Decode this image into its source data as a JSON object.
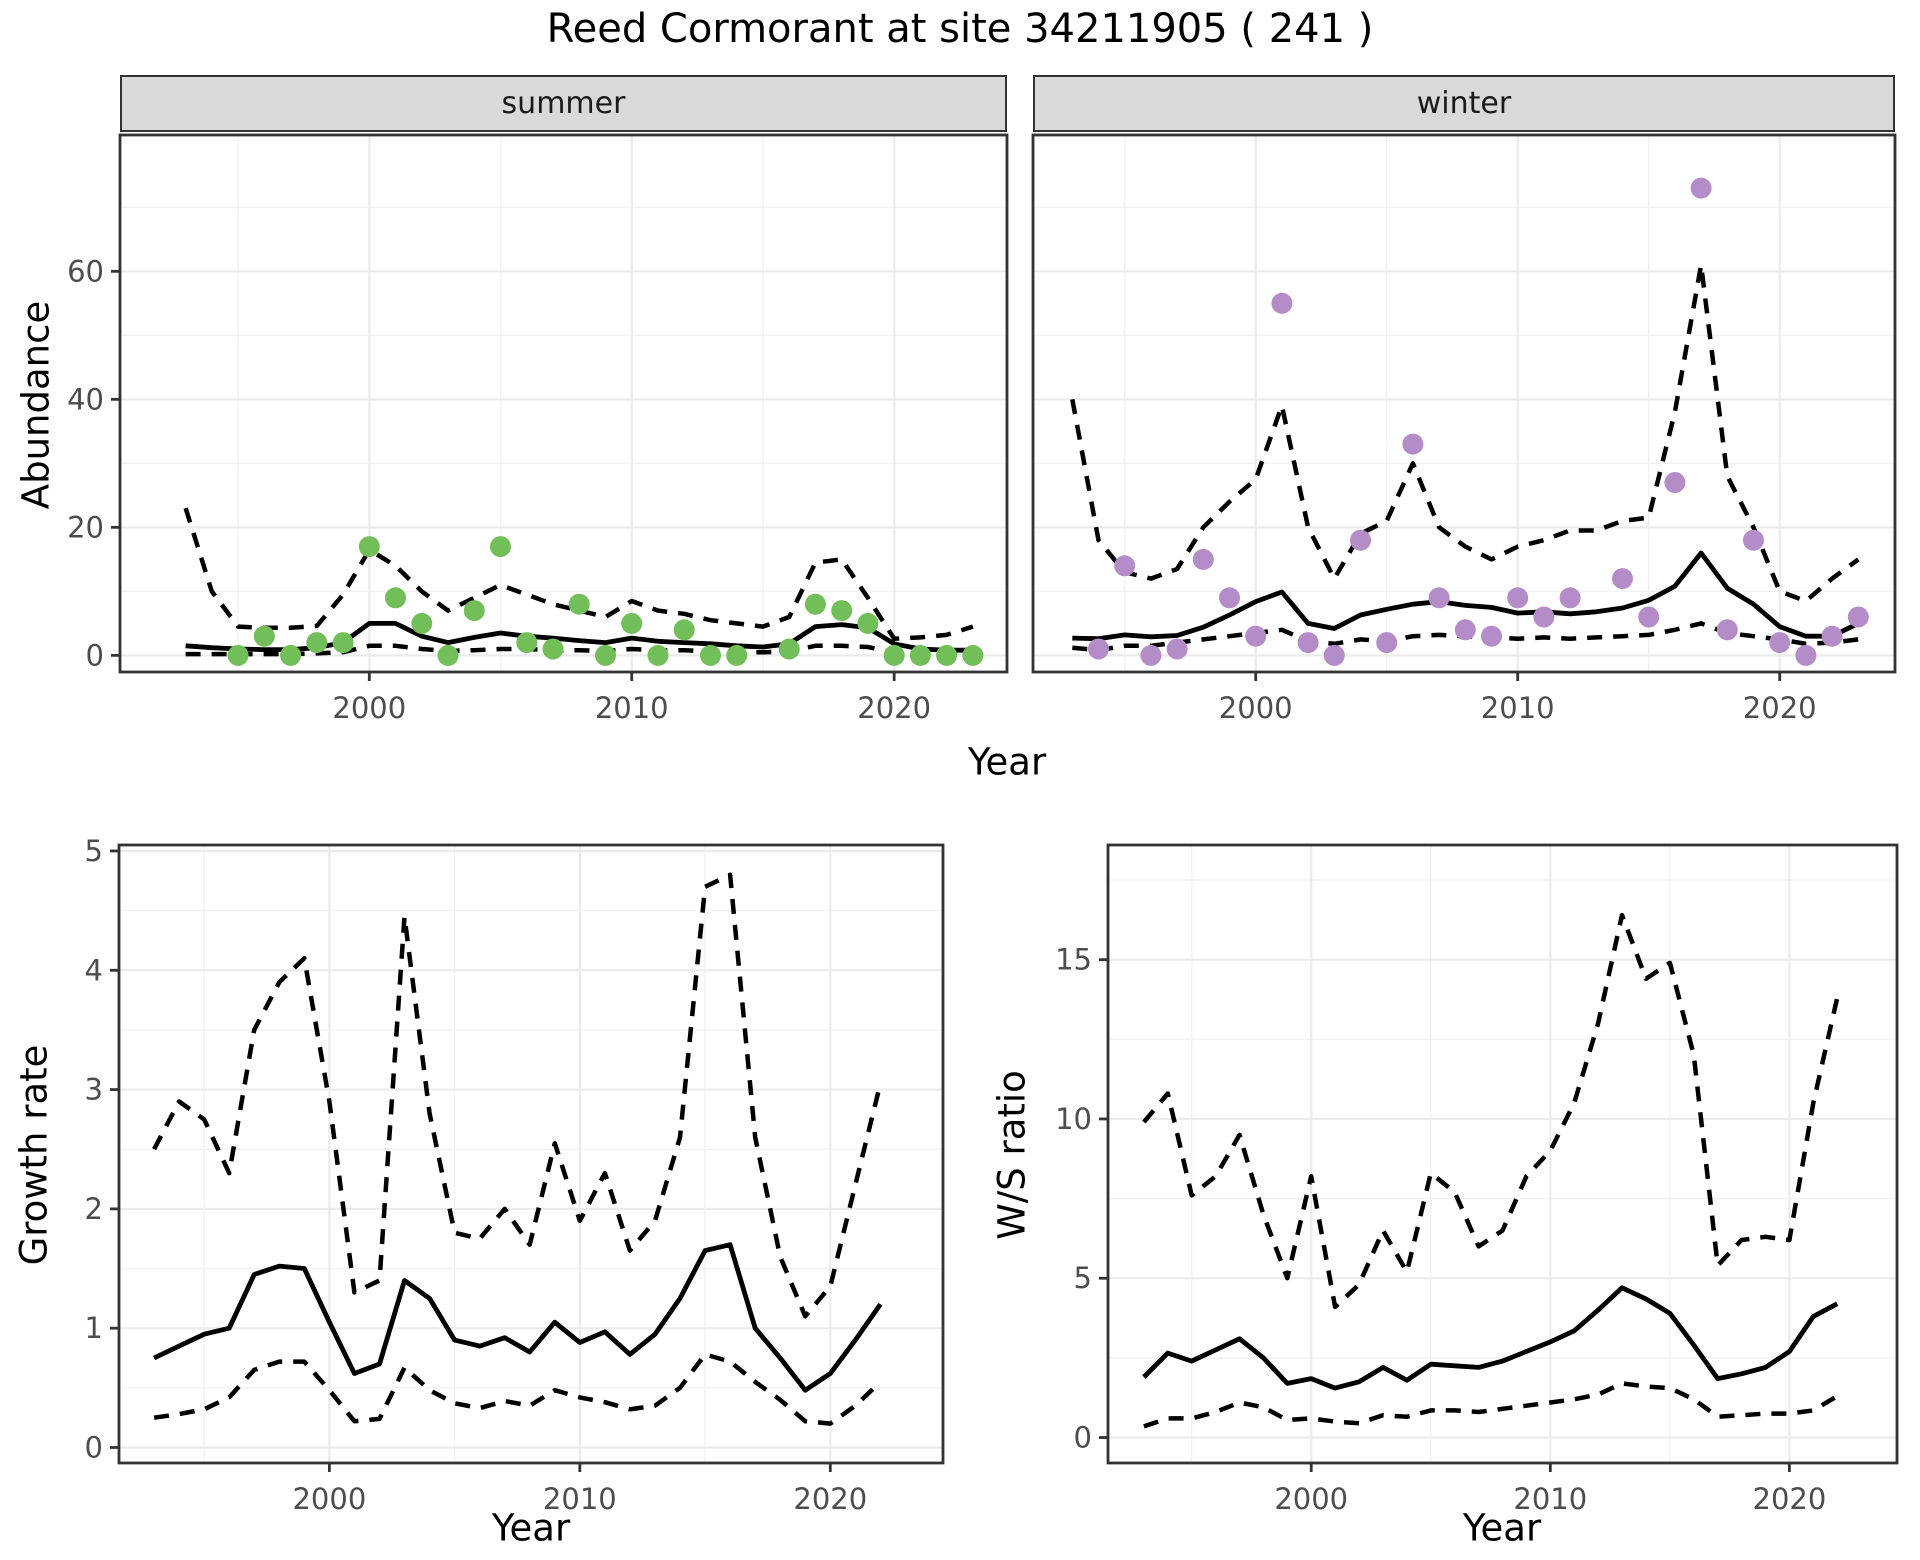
{
  "title": "Reed Cormorant at site 34211905 ( 241 )",
  "colors": {
    "summer_point": "#72bf5a",
    "winter_point": "#b48cc8",
    "line": "#000000",
    "grid_major": "#ebebeb",
    "grid_minor": "#f3f3f3",
    "panel_border": "#333333",
    "strip_bg": "#d9d9d9",
    "tick_text": "#4d4d4d"
  },
  "top_xlabel": "Year",
  "chart_data": [
    {
      "type": "scatter+line",
      "facet": "summer",
      "ylabel": "Abundance",
      "xlabel": "Year",
      "xlim": [
        1990.5,
        2024.3
      ],
      "ylim": [
        -2.6,
        81.3
      ],
      "xticks": [
        2000,
        2010,
        2020
      ],
      "xtick_labels": [
        "2000",
        "2010",
        "2020"
      ],
      "yticks": [
        0,
        20,
        40,
        60
      ],
      "ytick_labels": [
        "0",
        "20",
        "40",
        "60"
      ],
      "x_minor": [
        1995,
        2005,
        2015
      ],
      "y_minor": [
        10,
        30,
        50,
        70
      ],
      "point_color": "#72bf5a",
      "points": {
        "years": [
          1995,
          1996,
          1997,
          1998,
          1999,
          2000,
          2001,
          2002,
          2003,
          2004,
          2005,
          2006,
          2007,
          2008,
          2009,
          2010,
          2011,
          2012,
          2013,
          2014,
          2016,
          2017,
          2018,
          2019,
          2020,
          2021,
          2022,
          2023
        ],
        "values": [
          0,
          3,
          0,
          2,
          2,
          17,
          9,
          5,
          0,
          7,
          17,
          2,
          1,
          8,
          0,
          5,
          0,
          4,
          0,
          0,
          1,
          8,
          7,
          5,
          0,
          0,
          0,
          0
        ]
      },
      "years": [
        1993,
        1994,
        1995,
        1996,
        1997,
        1998,
        1999,
        2000,
        2001,
        2002,
        2003,
        2004,
        2005,
        2006,
        2007,
        2008,
        2009,
        2010,
        2011,
        2012,
        2013,
        2014,
        2015,
        2016,
        2017,
        2018,
        2019,
        2020,
        2021,
        2022,
        2023
      ],
      "mean": [
        1.5,
        1.2,
        1.0,
        0.9,
        0.9,
        1.2,
        2.0,
        5.0,
        5.0,
        3.0,
        2.0,
        2.8,
        3.5,
        3.0,
        2.7,
        2.3,
        2.0,
        2.7,
        2.2,
        2.0,
        1.8,
        1.5,
        1.3,
        1.8,
        4.5,
        4.8,
        4.3,
        1.8,
        1.0,
        0.8,
        0.8
      ],
      "upper": [
        23,
        10,
        4.5,
        4.3,
        4.3,
        4.6,
        9.5,
        16.5,
        14,
        10,
        7,
        9,
        11,
        9.5,
        8,
        7,
        6,
        8.5,
        7,
        6.5,
        5.5,
        5,
        4.5,
        6,
        14.5,
        15,
        9,
        2.6,
        2.8,
        3.2,
        4.5
      ],
      "lower": [
        0.2,
        0.2,
        0.2,
        0.2,
        0.2,
        0.3,
        0.5,
        1.5,
        1.5,
        1.0,
        0.7,
        0.8,
        1.0,
        1.0,
        0.8,
        0.8,
        0.7,
        1.0,
        0.8,
        0.8,
        0.6,
        0.5,
        0.5,
        0.6,
        1.5,
        1.5,
        1.3,
        0.4,
        0.3,
        0.2,
        0.2
      ]
    },
    {
      "type": "scatter+line",
      "facet": "winter",
      "ylabel": "Abundance",
      "xlabel": "Year",
      "xlim": [
        1991.5,
        2024.4
      ],
      "ylim": [
        -2.6,
        81.3
      ],
      "xticks": [
        2000,
        2010,
        2020
      ],
      "xtick_labels": [
        "2000",
        "2010",
        "2020"
      ],
      "yticks": [
        0,
        20,
        40,
        60
      ],
      "ytick_labels": [
        "0",
        "20",
        "40",
        "60"
      ],
      "x_minor": [
        1995,
        2005,
        2015
      ],
      "y_minor": [
        10,
        30,
        50,
        70
      ],
      "point_color": "#b48cc8",
      "points": {
        "years": [
          1994,
          1995,
          1996,
          1997,
          1998,
          1999,
          2000,
          2001,
          2002,
          2003,
          2004,
          2005,
          2006,
          2007,
          2008,
          2009,
          2010,
          2011,
          2012,
          2014,
          2015,
          2016,
          2017,
          2018,
          2019,
          2020,
          2021,
          2022,
          2023
        ],
        "values": [
          1,
          14,
          0,
          1,
          15,
          9,
          3,
          55,
          2,
          0,
          18,
          2,
          33,
          9,
          4,
          3,
          9,
          6,
          9,
          12,
          6,
          27,
          73,
          4,
          18,
          2,
          0,
          3,
          6
        ]
      },
      "years": [
        1993,
        1994,
        1995,
        1996,
        1997,
        1998,
        1999,
        2000,
        2001,
        2002,
        2003,
        2004,
        2005,
        2006,
        2007,
        2008,
        2009,
        2010,
        2011,
        2012,
        2013,
        2014,
        2015,
        2016,
        2017,
        2018,
        2019,
        2020,
        2021,
        2022,
        2023
      ],
      "mean": [
        2.7,
        2.6,
        3.2,
        2.9,
        3.1,
        4.4,
        6.3,
        8.4,
        9.9,
        5.0,
        4.2,
        6.3,
        7.2,
        8.0,
        8.4,
        7.8,
        7.5,
        6.6,
        6.8,
        6.5,
        6.8,
        7.4,
        8.6,
        10.8,
        16.0,
        10.5,
        8.0,
        4.5,
        3.0,
        3.0,
        5.0
      ],
      "upper": [
        40,
        18,
        13,
        12,
        13.5,
        20,
        24,
        27.5,
        39,
        20,
        12,
        19,
        21,
        30,
        20,
        17,
        15,
        17,
        18,
        19.5,
        19.5,
        21,
        21.5,
        38,
        61,
        28,
        20,
        10,
        8.5,
        12,
        15
      ],
      "lower": [
        1.2,
        0.8,
        1.5,
        1.5,
        2.0,
        2.5,
        3.0,
        3.5,
        4.0,
        2.2,
        1.8,
        2.5,
        2.2,
        3.0,
        3.2,
        3.0,
        2.8,
        2.6,
        2.8,
        2.6,
        2.8,
        3.0,
        3.2,
        4.0,
        5.0,
        3.5,
        3.0,
        2.5,
        1.8,
        2.0,
        2.5
      ]
    },
    {
      "type": "line",
      "facet": "",
      "ylabel": "Growth rate",
      "xlabel": "Year",
      "xlim": [
        1991.6,
        2024.5
      ],
      "ylim": [
        -0.13,
        5.05
      ],
      "xticks": [
        2000,
        2010,
        2020
      ],
      "xtick_labels": [
        "2000",
        "2010",
        "2020"
      ],
      "yticks": [
        0,
        1,
        2,
        3,
        4,
        5
      ],
      "ytick_labels": [
        "0",
        "1",
        "2",
        "3",
        "4",
        "5"
      ],
      "x_minor": [
        1995,
        2005,
        2015
      ],
      "y_minor": [
        0.5,
        1.5,
        2.5,
        3.5,
        4.5
      ],
      "years": [
        1993,
        1994,
        1995,
        1996,
        1997,
        1998,
        1999,
        2000,
        2001,
        2002,
        2003,
        2004,
        2005,
        2006,
        2007,
        2008,
        2009,
        2010,
        2011,
        2012,
        2013,
        2014,
        2015,
        2016,
        2017,
        2018,
        2019,
        2020,
        2021,
        2022
      ],
      "mean": [
        0.75,
        0.85,
        0.95,
        1.0,
        1.45,
        1.52,
        1.5,
        1.05,
        0.62,
        0.7,
        1.4,
        1.25,
        0.9,
        0.85,
        0.92,
        0.8,
        1.05,
        0.88,
        0.97,
        0.78,
        0.95,
        1.25,
        1.65,
        1.7,
        1.0,
        0.75,
        0.48,
        0.62,
        0.9,
        1.2
      ],
      "upper": [
        2.5,
        2.9,
        2.75,
        2.3,
        3.5,
        3.9,
        4.1,
        2.9,
        1.3,
        1.4,
        4.45,
        2.8,
        1.8,
        1.75,
        2.0,
        1.7,
        2.55,
        1.9,
        2.3,
        1.65,
        1.9,
        2.6,
        4.7,
        4.8,
        2.6,
        1.6,
        1.1,
        1.35,
        2.2,
        3.05
      ],
      "lower": [
        0.25,
        0.28,
        0.32,
        0.42,
        0.65,
        0.72,
        0.72,
        0.48,
        0.22,
        0.24,
        0.67,
        0.48,
        0.37,
        0.33,
        0.39,
        0.35,
        0.48,
        0.42,
        0.38,
        0.32,
        0.35,
        0.5,
        0.78,
        0.72,
        0.55,
        0.4,
        0.22,
        0.2,
        0.35,
        0.55
      ]
    },
    {
      "type": "line",
      "facet": "",
      "ylabel": "W/S ratio",
      "xlabel": "Year",
      "xlim": [
        1991.5,
        2024.5
      ],
      "ylim": [
        -0.8,
        18.6
      ],
      "xticks": [
        2000,
        2010,
        2020
      ],
      "xtick_labels": [
        "2000",
        "2010",
        "2020"
      ],
      "yticks": [
        0,
        5,
        10,
        15
      ],
      "ytick_labels": [
        "0",
        "5",
        "10",
        "15"
      ],
      "x_minor": [
        1995,
        2005,
        2015
      ],
      "y_minor": [
        2.5,
        7.5,
        12.5,
        17.5
      ],
      "years": [
        1993,
        1994,
        1995,
        1996,
        1997,
        1998,
        1999,
        2000,
        2001,
        2002,
        2003,
        2004,
        2005,
        2006,
        2007,
        2008,
        2009,
        2010,
        2011,
        2012,
        2013,
        2014,
        2015,
        2016,
        2017,
        2018,
        2019,
        2020,
        2021,
        2022
      ],
      "mean": [
        1.9,
        2.65,
        2.4,
        2.75,
        3.1,
        2.5,
        1.7,
        1.85,
        1.55,
        1.75,
        2.2,
        1.8,
        2.3,
        2.25,
        2.2,
        2.4,
        2.7,
        3.0,
        3.35,
        4.0,
        4.7,
        4.35,
        3.9,
        2.9,
        1.85,
        2.0,
        2.2,
        2.7,
        3.8,
        4.2
      ],
      "upper": [
        9.9,
        10.8,
        7.6,
        8.2,
        9.5,
        7.0,
        5.0,
        8.2,
        4.1,
        4.8,
        6.5,
        5.2,
        8.3,
        7.7,
        6.0,
        6.5,
        8.2,
        9.0,
        10.5,
        13.0,
        16.4,
        14.4,
        14.9,
        12.0,
        5.4,
        6.2,
        6.3,
        6.2,
        10.5,
        13.8
      ],
      "lower": [
        0.35,
        0.6,
        0.6,
        0.8,
        1.1,
        0.95,
        0.55,
        0.6,
        0.5,
        0.45,
        0.7,
        0.65,
        0.85,
        0.85,
        0.8,
        0.9,
        1.0,
        1.1,
        1.2,
        1.35,
        1.7,
        1.6,
        1.55,
        1.2,
        0.65,
        0.7,
        0.75,
        0.75,
        0.85,
        1.3
      ]
    }
  ]
}
